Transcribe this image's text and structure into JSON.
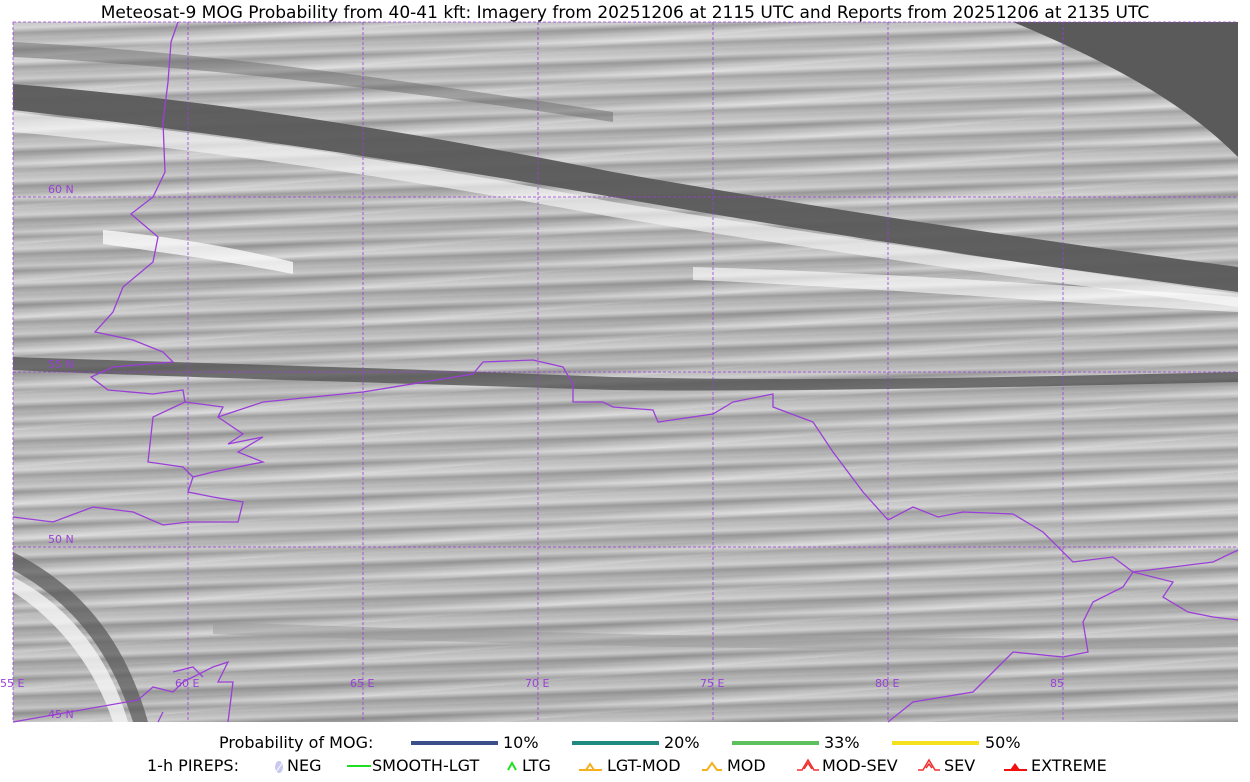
{
  "title": "Meteosat-9 MOG Probability from 40-41 kft: Imagery from 20251206 at 2115 UTC and Reports from 20251206 at 2135 UTC",
  "map": {
    "grid_color": "#9a3fd8",
    "border_color": "#9a3fd8",
    "lat_labels": [
      "60 N",
      "55 N",
      "50 N",
      "45 N"
    ],
    "lon_labels": [
      "55 E",
      "60 E",
      "65 E",
      "70 E",
      "75 E",
      "80 E",
      "85"
    ]
  },
  "legend": {
    "mog_label": "Probability of MOG:",
    "mog_levels": [
      {
        "label": "10%",
        "color": "#3b4f8a"
      },
      {
        "label": "20%",
        "color": "#218a80"
      },
      {
        "label": "33%",
        "color": "#5cc15c"
      },
      {
        "label": "50%",
        "color": "#f5e01e"
      }
    ],
    "pireps_label": "1-h PIREPS:",
    "pireps": [
      {
        "label": "NEG",
        "icon": "neg-icon",
        "color": "#c8c8f0"
      },
      {
        "label": "SMOOTH-LGT",
        "icon": "smooth-lgt-line-icon",
        "color": "#22dd22"
      },
      {
        "label": "LTG",
        "icon": "ltg-caret-icon",
        "color": "#22dd22"
      },
      {
        "label": "LGT-MOD",
        "icon": "lgt-mod-triangle-icon",
        "color": "#f5b020"
      },
      {
        "label": "MOD",
        "icon": "mod-caret-icon",
        "color": "#f5b020"
      },
      {
        "label": "MOD-SEV",
        "icon": "mod-sev-icon",
        "color": "#f03030"
      },
      {
        "label": "SEV",
        "icon": "sev-icon",
        "color": "#f03030"
      },
      {
        "label": "EXTREME",
        "icon": "extreme-icon",
        "color": "#f01010"
      }
    ]
  }
}
